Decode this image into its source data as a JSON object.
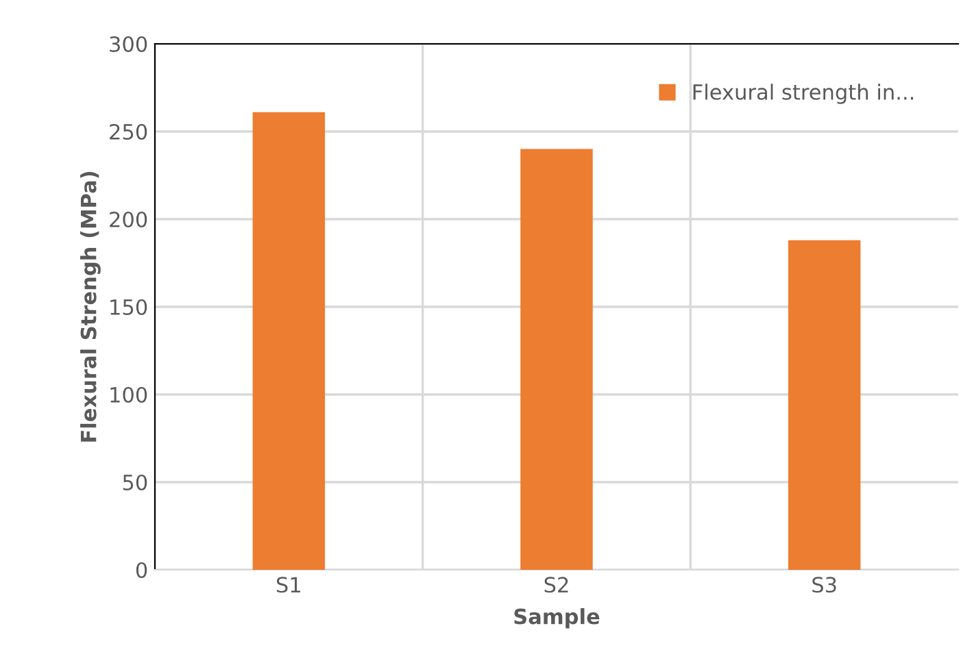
{
  "chart_data": {
    "type": "bar",
    "xlabel": "Sample",
    "ylabel": "Flexural Strengh (MPa)",
    "categories": [
      "S1",
      "S2",
      "S3"
    ],
    "series": [
      {
        "name": "Flexural strength in...",
        "color": "#ed7d31",
        "values": [
          261,
          240,
          188
        ]
      }
    ],
    "ylim": [
      0,
      300
    ],
    "yticks": [
      0,
      50,
      100,
      150,
      200,
      250,
      300
    ],
    "grid": true,
    "legend": "top right"
  }
}
